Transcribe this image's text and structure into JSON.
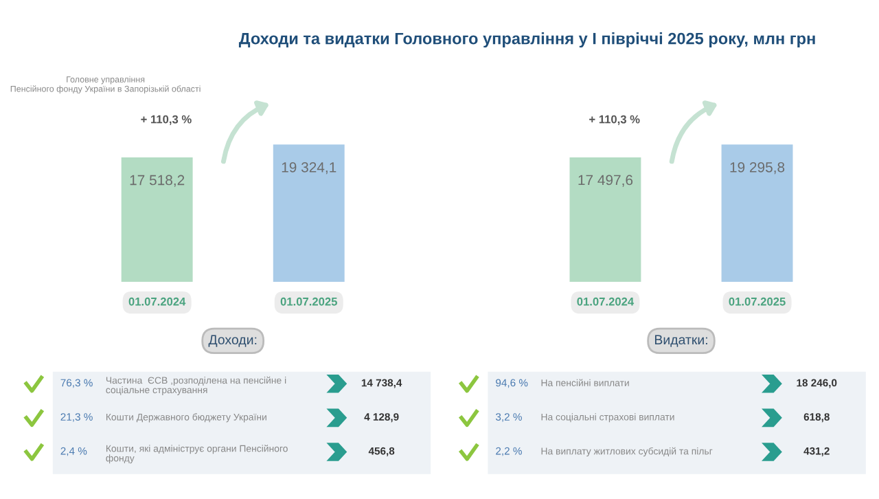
{
  "chart_data": [
    {
      "type": "bar",
      "title": "Доходи та видатки Головного управління у І півріччі 2025 року, млн грн",
      "categories": [
        "01.07.2024",
        "01.07.2025"
      ],
      "values": [
        17518.2,
        19324.1
      ],
      "colors": [
        "#b3dcc3",
        "#a9cbe8"
      ],
      "value_labels": [
        "17 518,2",
        "19 324,1"
      ],
      "xlabel": "Доходи:",
      "tick_labels": "x",
      "annotations": [
        "+ 110,3 %",
        "Головне управління\nПенсійного фонду України в Запорізькій області"
      ]
    },
    {
      "type": "bar",
      "categories": [
        "01.07.2024",
        "01.07.2025"
      ],
      "values": [
        17497.6,
        19295.8
      ],
      "colors": [
        "#b3dcc3",
        "#a9cbe8"
      ],
      "value_labels": [
        "17 497,6",
        "19 295,8"
      ],
      "xlabel": "Видатки:",
      "tick_labels": "x",
      "annotations": [
        "+ 110,3 %"
      ]
    },
    {
      "type": "other",
      "annotations": [
        "76,3 %",
        "Частина  ЄСВ ,розподілена на пенсійне і\nсоціальне страхування",
        "14 738,4",
        "21,3 %",
        "Кошти Державного бюджету України",
        "4 128,9",
        "2,4 %",
        "Кошти, які адмініструє органи Пенсійного\nфонду",
        "456,8"
      ]
    },
    {
      "type": "other",
      "annotations": [
        "94,6 %",
        "На пенсійні виплати",
        "18 246,0",
        "3,2 %",
        "На соціальні страхові виплати",
        "618,8",
        "2,2 %",
        "На виплату житлових субсидій та пільг",
        "431,2"
      ]
    }
  ]
}
